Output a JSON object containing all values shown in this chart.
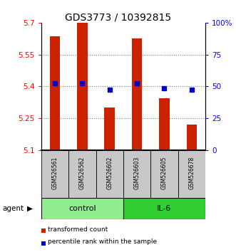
{
  "title": "GDS3773 / 10392815",
  "samples": [
    "GSM526561",
    "GSM526562",
    "GSM526602",
    "GSM526603",
    "GSM526605",
    "GSM526678"
  ],
  "red_values": [
    5.635,
    5.7,
    5.3,
    5.625,
    5.345,
    5.22
  ],
  "blue_values": [
    5.415,
    5.415,
    5.385,
    5.415,
    5.39,
    5.385
  ],
  "ylim": [
    5.1,
    5.7
  ],
  "yticks_left": [
    5.1,
    5.25,
    5.4,
    5.55,
    5.7
  ],
  "yticks_right": [
    0,
    25,
    50,
    75,
    100
  ],
  "groups": [
    {
      "label": "control",
      "indices": [
        0,
        1,
        2
      ],
      "color": "#90EE90"
    },
    {
      "label": "IL-6",
      "indices": [
        3,
        4,
        5
      ],
      "color": "#32CD32"
    }
  ],
  "red_color": "#CC2200",
  "blue_color": "#0000CC",
  "bar_bottom": 5.1,
  "dotted_line_color": "#777777",
  "legend_red": "transformed count",
  "legend_blue": "percentile rank within the sample",
  "sample_box_color": "#C8C8C8",
  "title_fontsize": 10,
  "tick_fontsize": 7.5,
  "sample_fontsize": 5.5,
  "group_fontsize": 8,
  "legend_fontsize": 6.5
}
